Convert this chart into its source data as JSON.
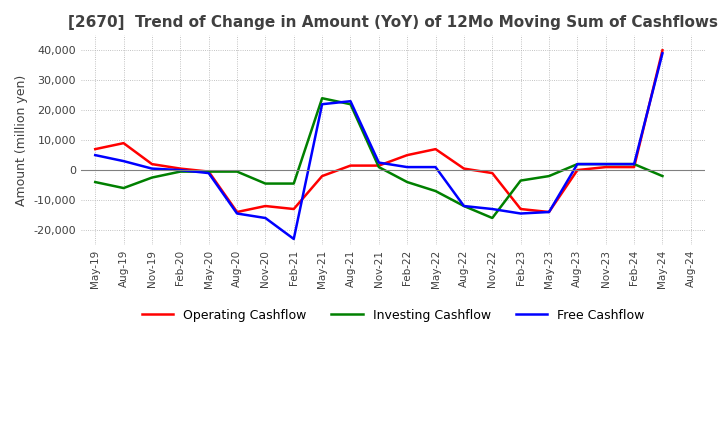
{
  "title": "[2670]  Trend of Change in Amount (YoY) of 12Mo Moving Sum of Cashflows",
  "ylabel": "Amount (million yen)",
  "ylim": [
    -25000,
    45000
  ],
  "yticks": [
    -20000,
    -10000,
    0,
    10000,
    20000,
    30000,
    40000
  ],
  "x_labels": [
    "May-19",
    "Aug-19",
    "Nov-19",
    "Feb-20",
    "May-20",
    "Aug-20",
    "Nov-20",
    "Feb-21",
    "May-21",
    "Aug-21",
    "Nov-21",
    "Feb-22",
    "May-22",
    "Aug-22",
    "Nov-22",
    "Feb-23",
    "May-23",
    "Aug-23",
    "Nov-23",
    "Feb-24",
    "May-24",
    "Aug-24"
  ],
  "operating_cashflow": [
    7000,
    9000,
    2000,
    500,
    -500,
    -14000,
    -12000,
    -13000,
    -2000,
    1500,
    1500,
    5000,
    7000,
    500,
    -1000,
    -13000,
    -14000,
    0,
    1000,
    1000,
    40000,
    null
  ],
  "investing_cashflow": [
    -4000,
    -6000,
    -2500,
    -500,
    -500,
    -500,
    -4500,
    -4500,
    24000,
    22000,
    1000,
    -4000,
    -7000,
    -12000,
    -16000,
    -3500,
    -2000,
    2000,
    2000,
    2000,
    -2000,
    null
  ],
  "free_cashflow": [
    5000,
    3000,
    500,
    0,
    -1000,
    -14500,
    -16000,
    -23000,
    22000,
    23000,
    2500,
    1000,
    1000,
    -12000,
    -13000,
    -14500,
    -14000,
    2000,
    2000,
    2000,
    39000,
    null
  ],
  "operating_color": "#ff0000",
  "investing_color": "#008000",
  "free_color": "#0000ff",
  "background_color": "#ffffff",
  "grid_color": "#b0b0b0",
  "grid_style": "dotted",
  "title_color": "#404040",
  "line_width": 1.8
}
